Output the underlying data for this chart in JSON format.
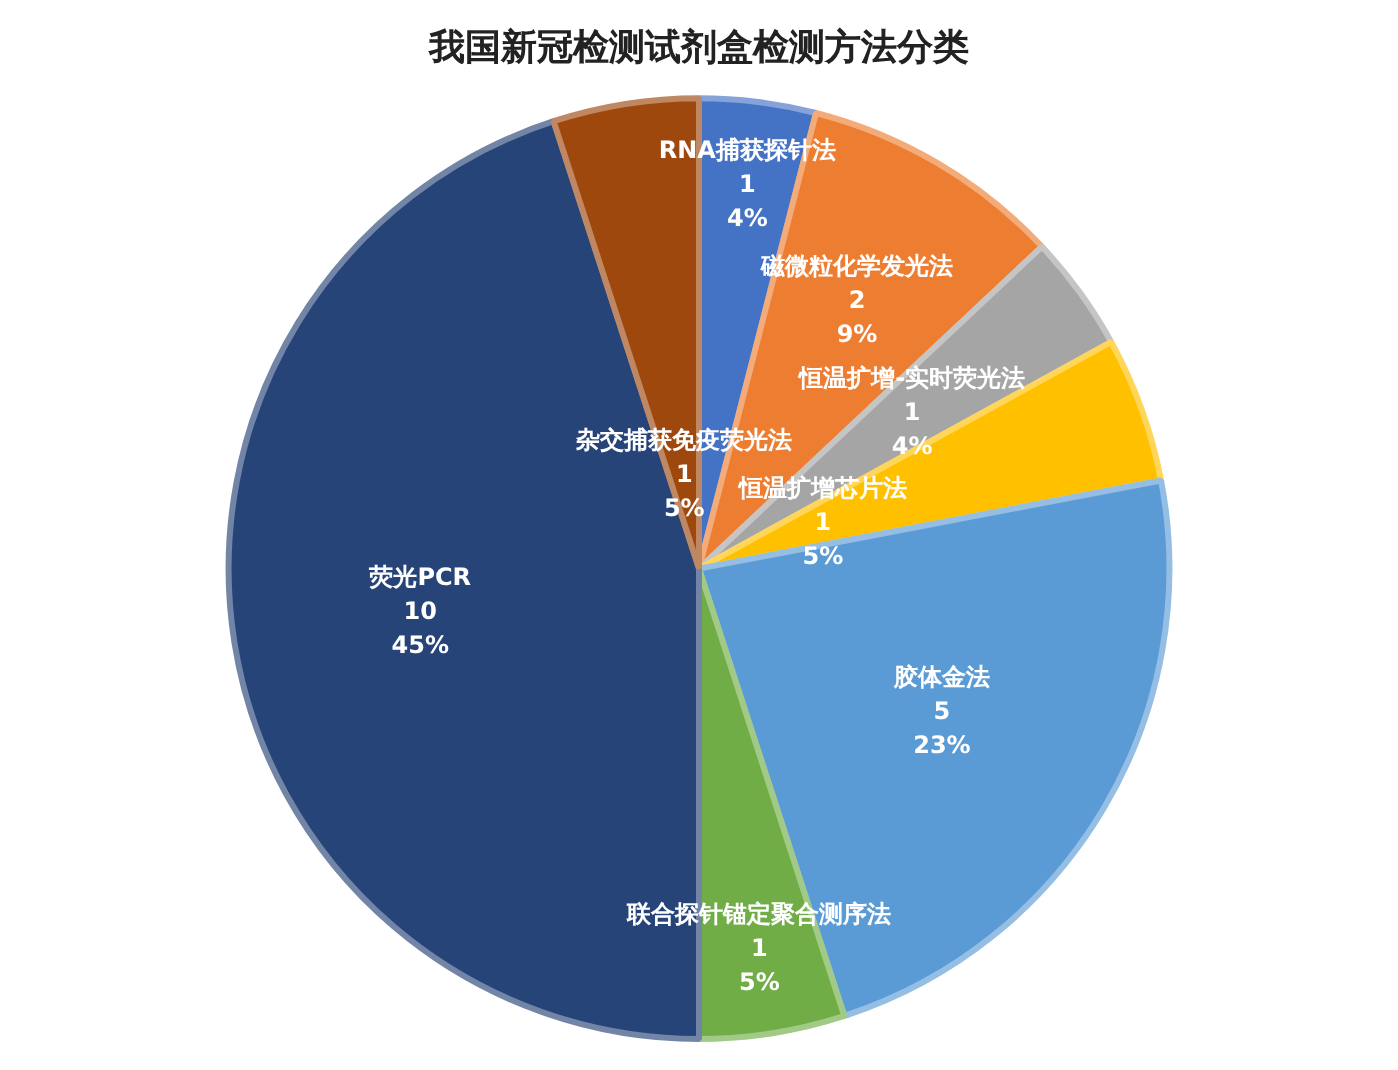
{
  "chart_data": {
    "type": "pie",
    "title": "我国新冠检测试剂盒检测方法分类",
    "categories": [
      "RNA捕获探针法",
      "磁微粒化学发光法",
      "恒温扩增-实时荧光法",
      "恒温扩增芯片法",
      "胶体金法",
      "联合探针锚定聚合测序法",
      "荧光PCR",
      "杂交捕获免疫荧光法"
    ],
    "values": [
      4,
      9,
      4,
      5,
      23,
      5,
      45,
      5
    ],
    "value_labels": [
      "1\n4%",
      "2\n9%",
      "1\n4%",
      "1\n5%",
      "5\n23%",
      "1\n5%",
      "10\n45%",
      "1\n5%"
    ],
    "colors": [
      "#4472c4",
      "#ed7d31",
      "#a5a5a5",
      "#ffc000",
      "#5b9bd5",
      "#70ad47",
      "#264478",
      "#9e480e"
    ],
    "legend": false
  }
}
